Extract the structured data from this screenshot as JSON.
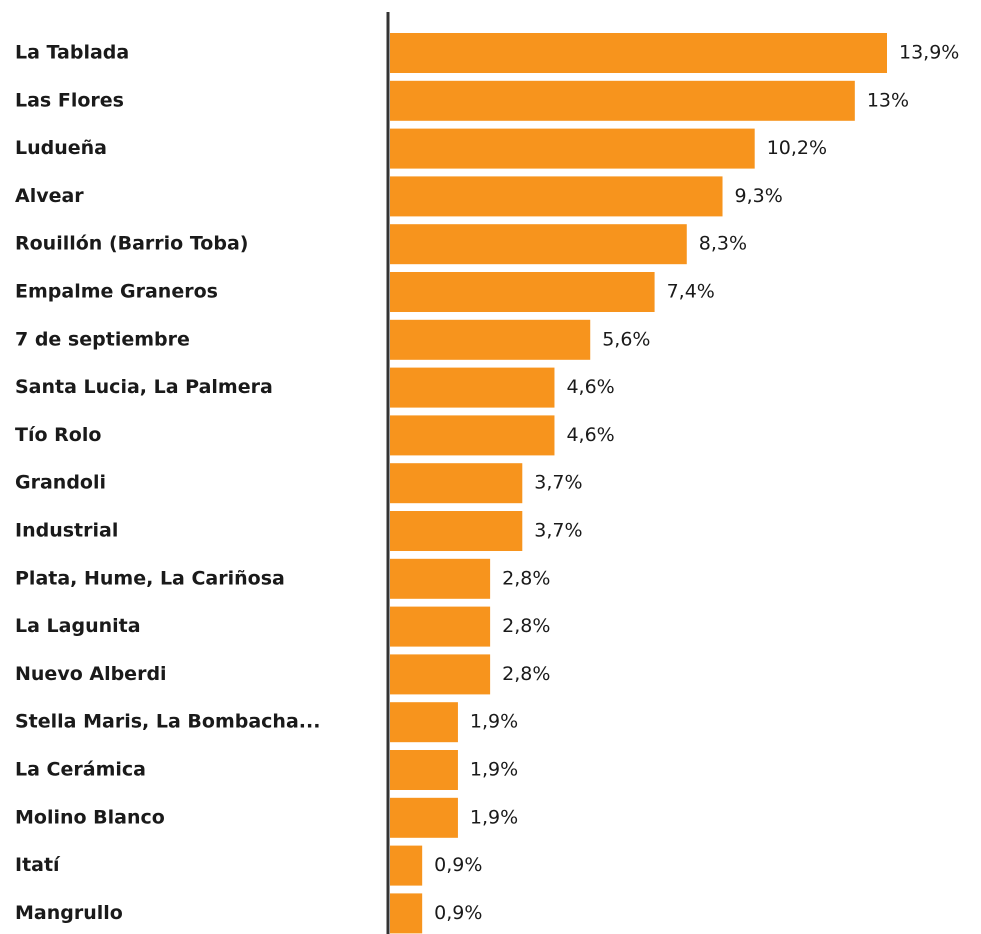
{
  "chart_data": {
    "type": "bar",
    "orientation": "horizontal",
    "color": "#f7941d",
    "categories": [
      "La Tablada",
      "Las Flores",
      "Ludueña",
      "Alvear",
      "Rouillón (Barrio Toba)",
      "Empalme Graneros",
      "7 de septiembre",
      "Santa Lucia, La Palmera",
      "Tío Rolo",
      "Grandoli",
      "Industrial",
      "Plata, Hume, La Cariñosa",
      "La Lagunita",
      "Nuevo Alberdi",
      "Stella Maris, La Bombacha...",
      "La Cerámica",
      "Molino Blanco",
      "Itatí",
      "Mangrullo"
    ],
    "values": [
      13.9,
      13,
      10.2,
      9.3,
      8.3,
      7.4,
      5.6,
      4.6,
      4.6,
      3.7,
      3.7,
      2.8,
      2.8,
      2.8,
      1.9,
      1.9,
      1.9,
      0.9,
      0.9
    ],
    "value_labels": [
      "13,9%",
      "13%",
      "10,2%",
      "9,3%",
      "8,3%",
      "7,4%",
      "5,6%",
      "4,6%",
      "4,6%",
      "3,7%",
      "3,7%",
      "2,8%",
      "2,8%",
      "2,8%",
      "1,9%",
      "1,9%",
      "1,9%",
      "0,9%",
      "0,9%"
    ]
  }
}
